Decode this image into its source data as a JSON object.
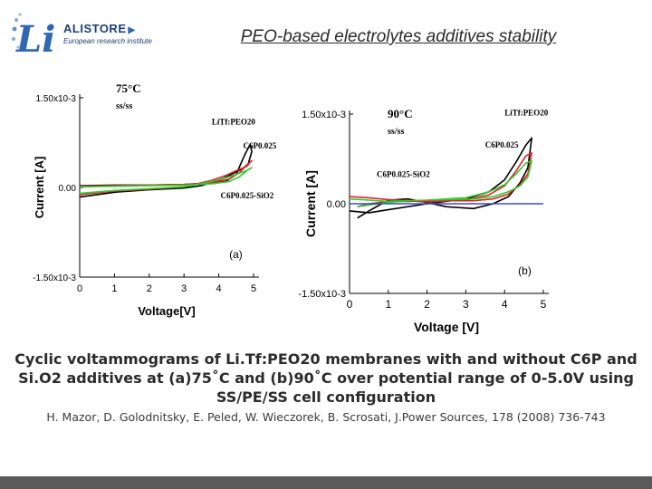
{
  "header": {
    "logo_mark": "Li",
    "logo_brand": "ALISTORE",
    "logo_subtitle": "European research institute",
    "title": "PEO-based electrolytes additives stability"
  },
  "colors": {
    "black_series": "#000000",
    "red_series": "#e0202a",
    "green_series": "#2ecc2e",
    "blue_series": "#3b4fc8",
    "footer": "#5a5a5a"
  },
  "chart_data": [
    {
      "type": "line",
      "panel_label": "(a)",
      "temperature": "75",
      "temperature_unit": "C",
      "electrode": "ss/ss",
      "xlabel": "Voltage[V]",
      "ylabel": "Current [A]",
      "xlim": [
        0,
        5
      ],
      "ylim": [
        -0.0015,
        0.0015
      ],
      "x_ticks": [
        "0",
        "1",
        "2",
        "3",
        "4",
        "5"
      ],
      "y_tick_labels": [
        "1.50x10-3",
        "0.00",
        "-1.50x10-3"
      ],
      "y_tick_values": [
        0.0015,
        0,
        -0.0015
      ],
      "series": [
        {
          "name": "LiTf:PEO20",
          "color": "black",
          "x": [
            0,
            1,
            2,
            3,
            3.8,
            4.2,
            4.5,
            4.75,
            4.9,
            4.95,
            4.85,
            4.7,
            4.5,
            4.3,
            4.0,
            3.5,
            3.0,
            2.0,
            1.0,
            0
          ],
          "y": [
            3e-05,
            4e-05,
            4e-05,
            5e-05,
            7e-05,
            0.0001,
            0.00022,
            0.00055,
            0.00072,
            0.0006,
            0.0004,
            0.00032,
            0.00026,
            0.0002,
            0.00012,
            3e-05,
            -1e-05,
            -4e-05,
            -8e-05,
            -0.00016
          ]
        },
        {
          "name": "C6P0.025",
          "color": "red",
          "x": [
            0,
            1,
            2,
            3,
            3.8,
            4.3,
            4.6,
            4.85,
            4.95,
            4.8,
            4.5,
            4.2,
            3.8,
            3.0,
            2.0,
            1.0,
            0
          ],
          "y": [
            2e-05,
            3e-05,
            4e-05,
            5e-05,
            8e-05,
            0.00014,
            0.00025,
            0.0004,
            0.00045,
            0.00035,
            0.00028,
            0.0002,
            0.00012,
            1e-05,
            -3e-05,
            -6e-05,
            -0.00012
          ]
        },
        {
          "name": "C6P0.025-SiO2",
          "color": "green",
          "x": [
            0,
            1,
            2,
            3,
            3.8,
            4.3,
            4.6,
            4.85,
            4.95,
            4.8,
            4.5,
            4.2,
            3.8,
            3.0,
            2.0,
            1.0,
            0
          ],
          "y": [
            1e-05,
            2e-05,
            3e-05,
            4e-05,
            6e-05,
            0.0001,
            0.00018,
            0.0003,
            0.00033,
            0.00028,
            0.00022,
            0.00016,
            0.0001,
            1e-05,
            -2e-05,
            -5e-05,
            -0.0001
          ]
        }
      ],
      "legend_labels": {
        "black": "LiTf:PEO20",
        "red": "C6P0.025",
        "green": "C6P0.025-SiO2"
      }
    },
    {
      "type": "line",
      "panel_label": "(b)",
      "temperature": "90",
      "temperature_unit": "C",
      "electrode": "ss/ss",
      "xlabel": "Voltage [V]",
      "ylabel": "Current [A]",
      "xlim": [
        0,
        5
      ],
      "ylim": [
        -0.0015,
        0.0015
      ],
      "x_ticks": [
        "0",
        "1",
        "2",
        "3",
        "4",
        "5"
      ],
      "y_tick_labels": [
        "1.50x10-3",
        "0.00",
        "-1.50x10-3"
      ],
      "y_tick_values": [
        0.0015,
        0,
        -0.0015
      ],
      "series": [
        {
          "name": "LiTf:PEO20",
          "color": "black",
          "x": [
            0,
            0.5,
            1.0,
            2.0,
            3.0,
            3.6,
            4.0,
            4.3,
            4.55,
            4.7,
            4.6,
            4.4,
            4.1,
            3.7,
            3.2,
            2.5,
            2.0,
            1.5,
            1.0,
            0.5,
            0.2
          ],
          "y": [
            -0.00012,
            -0.00015,
            -0.0001,
            0.0,
            8e-05,
            0.0002,
            0.0004,
            0.0007,
            0.00098,
            0.0011,
            0.0006,
            0.00035,
            0.00012,
            0.0,
            -8e-05,
            -5e-05,
            2e-05,
            8e-05,
            6e-05,
            -0.00012,
            -0.00024
          ]
        },
        {
          "name": "C6P0.025",
          "color": "red",
          "x": [
            0,
            0.5,
            1.0,
            2.0,
            3.0,
            3.6,
            4.0,
            4.3,
            4.55,
            4.7,
            4.6,
            4.4,
            4.1,
            3.7,
            3.2,
            2.5,
            2.0,
            1.5,
            1.0,
            0.5,
            0.2
          ],
          "y": [
            0.00012,
            0.0001,
            7e-05,
            3e-05,
            6e-05,
            0.00015,
            0.0003,
            0.00055,
            0.0008,
            0.00085,
            0.0005,
            0.00032,
            0.00016,
            8e-05,
            5e-05,
            5e-05,
            5e-05,
            4e-05,
            4e-05,
            0.0,
            -5e-05
          ]
        },
        {
          "name": "C6P0.025-SiO2",
          "color": "green",
          "x": [
            0,
            0.5,
            1.0,
            2.0,
            3.0,
            3.6,
            4.0,
            4.3,
            4.55,
            4.7,
            4.6,
            4.4,
            4.1,
            3.7,
            3.2,
            2.5,
            2.0,
            1.5,
            1.0,
            0.5,
            0.2
          ],
          "y": [
            8e-05,
            6e-05,
            4e-05,
            6e-05,
            0.0001,
            0.0002,
            0.00032,
            0.0005,
            0.00068,
            0.00072,
            0.00045,
            0.0003,
            0.0002,
            0.00012,
            8e-05,
            7e-05,
            6e-05,
            5e-05,
            2e-05,
            -2e-05,
            -5e-05
          ]
        },
        {
          "name": "baseline",
          "color": "blue",
          "x": [
            0,
            5
          ],
          "y": [
            0.0,
            0.0
          ]
        }
      ],
      "legend_labels": {
        "black": "LiTf:PEO20",
        "red": "C6P0.025",
        "green": "C6P0.025-SiO2"
      }
    }
  ],
  "caption": {
    "main": "Cyclic voltammograms of Li.Tf:PEO20 membranes with and without C6P and Si.O2 additives at (a)75˚C and (b)90˚C over potential range of 0-5.0V using SS/PE/SS cell configuration",
    "reference": "H. Mazor, D. Golodnitsky, E. Peled, W. Wieczorek, B. Scrosati, J.Power Sources, 178 (2008) 736-743"
  }
}
